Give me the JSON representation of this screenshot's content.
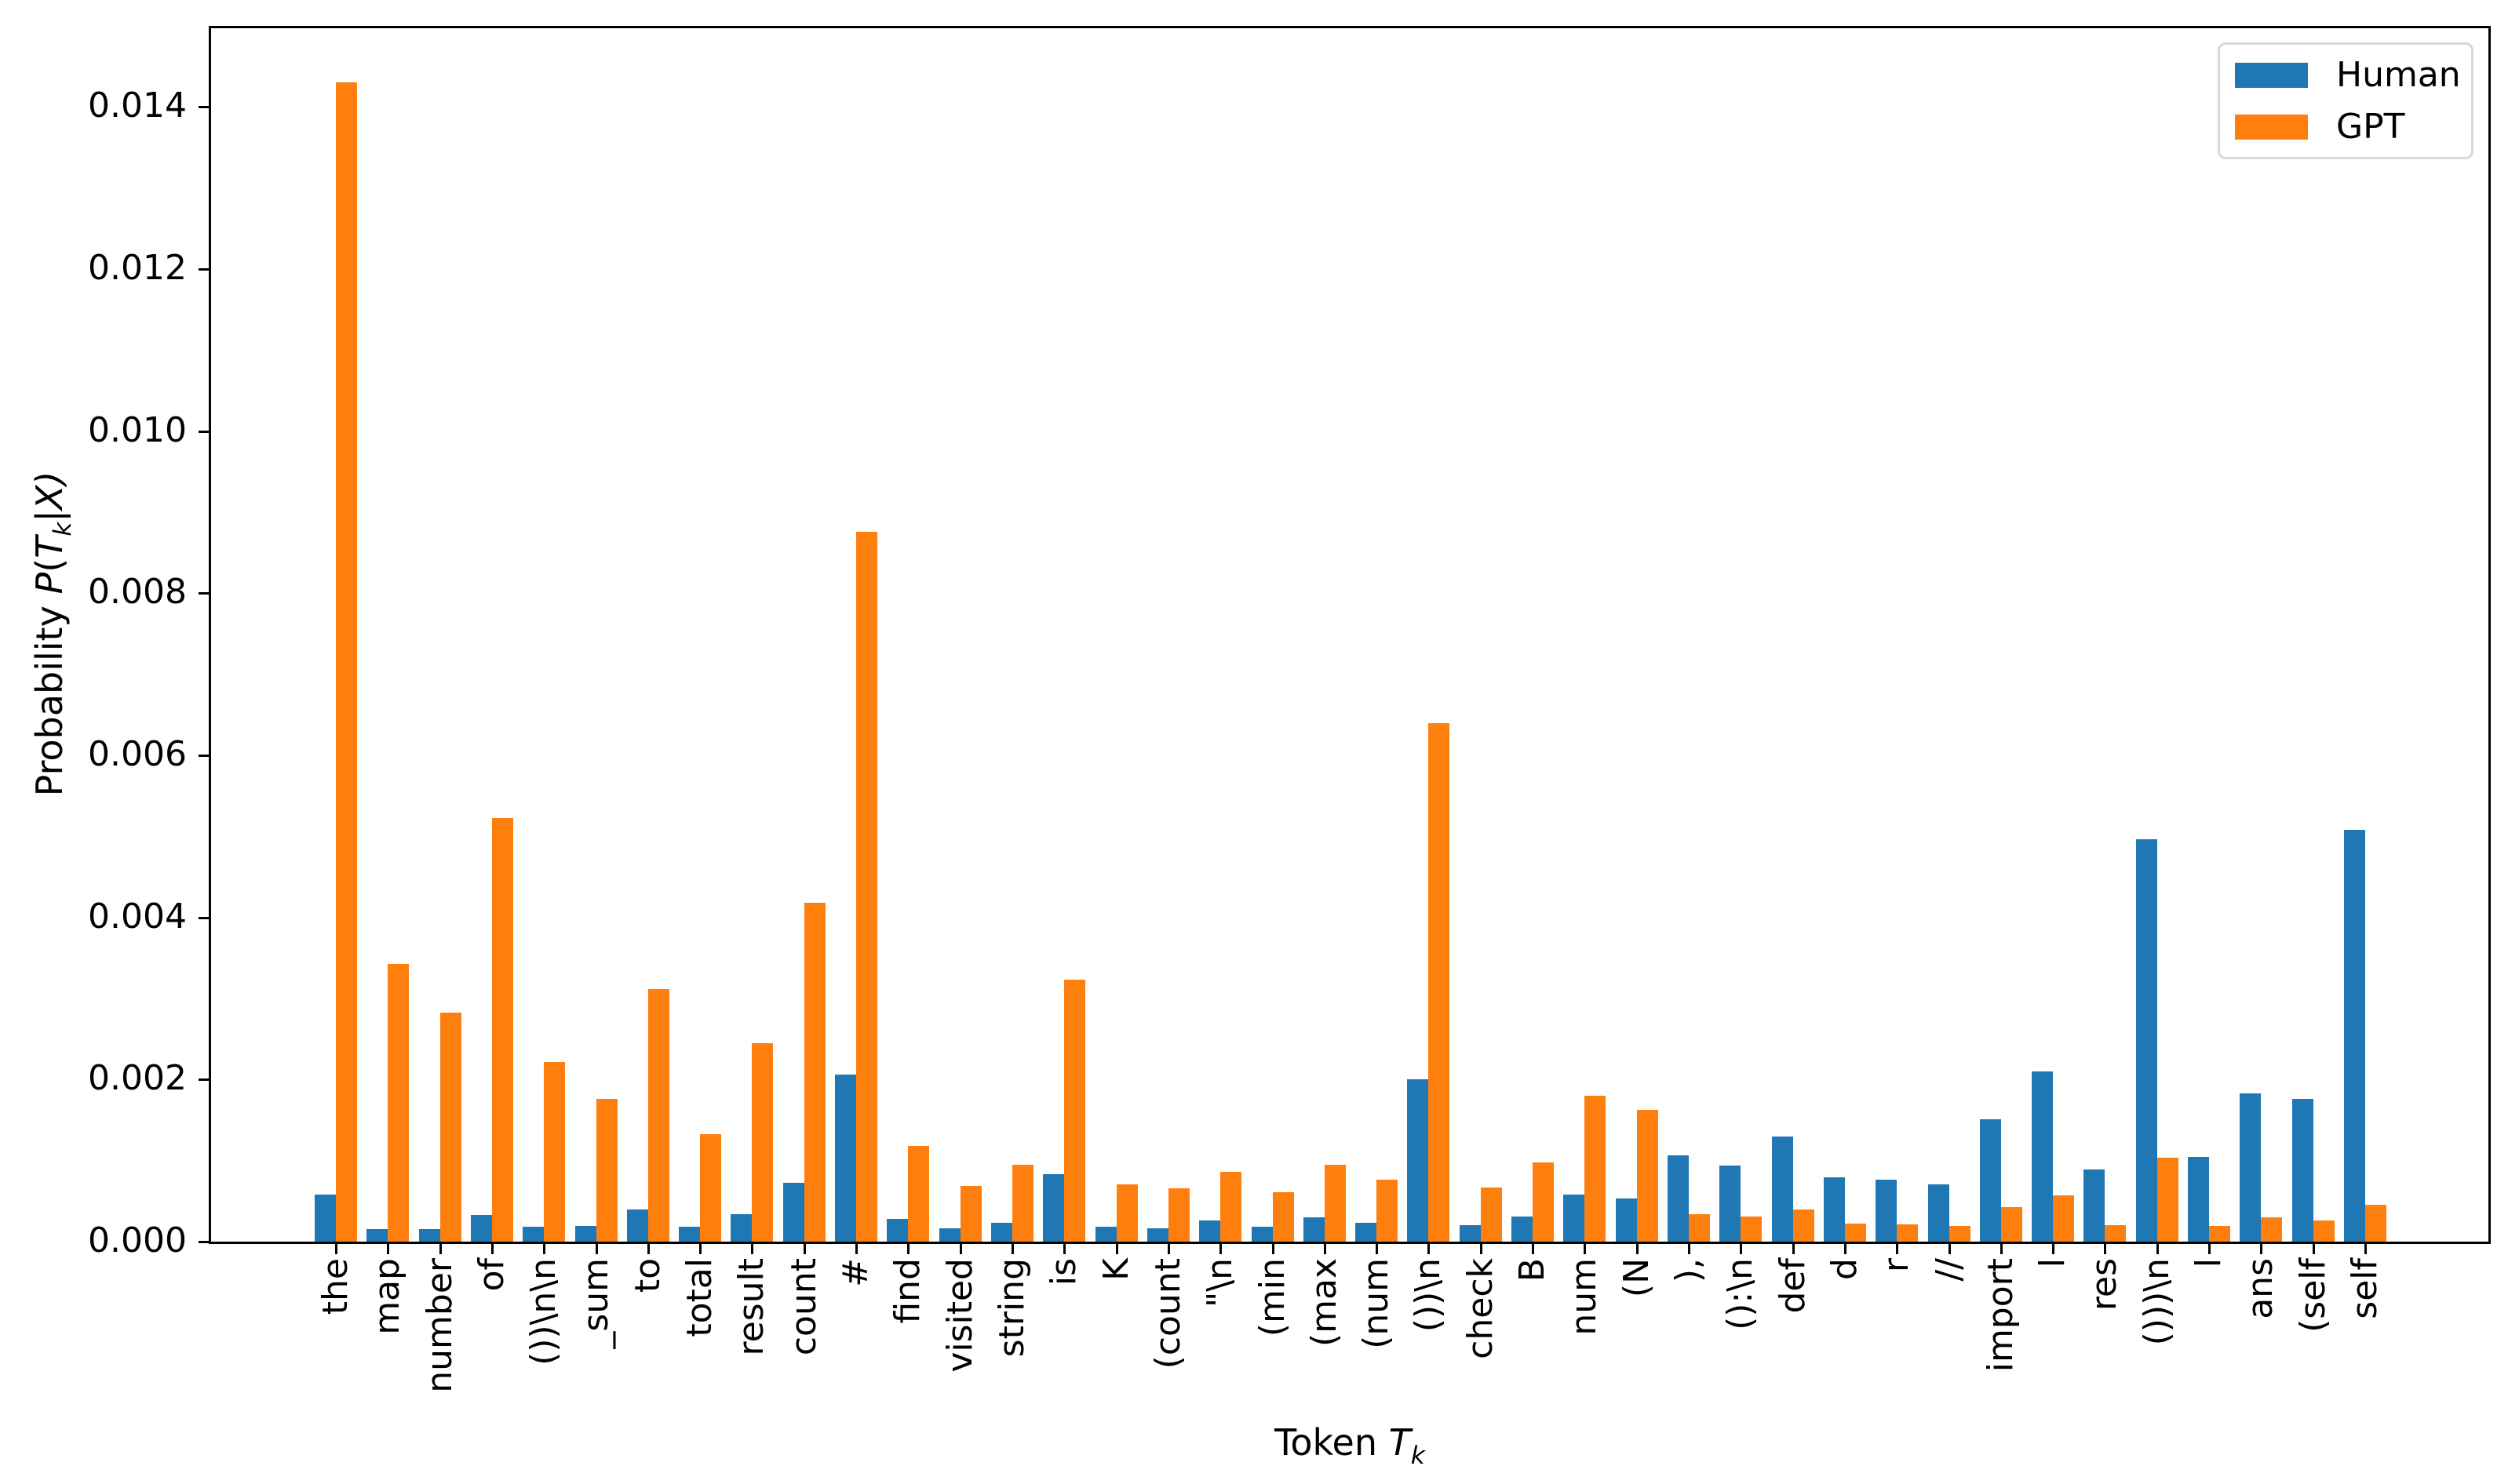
{
  "figure": {
    "xlabel": {
      "plain": "Token ",
      "math": "T",
      "sub": "k"
    },
    "ylabel": {
      "plain": "Probability ",
      "math_pre": "P",
      "paren": "(",
      "math_t": "T",
      "sub": "k",
      "rest": "|X)"
    },
    "legend": [
      {
        "label": "Human",
        "color": "#1f77b4"
      },
      {
        "label": "GPT",
        "color": "#ff7f0e"
      }
    ]
  },
  "chart_data": {
    "type": "bar",
    "title": "",
    "xlabel": "Token T_k",
    "ylabel": "Probability P(T_k|X)",
    "legend_position": "upper right",
    "grid": false,
    "ylim": [
      0,
      0.015
    ],
    "yticks": [
      0.0,
      0.002,
      0.004,
      0.006,
      0.008,
      0.01,
      0.012,
      0.014
    ],
    "ytick_labels": [
      "0.000",
      "0.002",
      "0.004",
      "0.006",
      "0.008",
      "0.010",
      "0.012",
      "0.014"
    ],
    "categories": [
      "the",
      "map",
      "number",
      "of",
      "())\\n\\n",
      "_sum",
      "to",
      "total",
      "result",
      "count",
      "#",
      "find",
      "visited",
      "string",
      "is",
      "K",
      "(count",
      "\"\\n",
      "(min",
      "(max",
      "(num",
      "())\\n",
      "check",
      "B",
      "num",
      "(N",
      "),",
      "():\\n",
      "def",
      "d",
      "r",
      "//",
      "import",
      "l",
      "res",
      "()))\\n",
      "l",
      "ans",
      "(self",
      "self"
    ],
    "series": [
      {
        "name": "Human",
        "color": "#1f77b4",
        "values": [
          0.00058,
          0.00015,
          0.00015,
          0.00033,
          0.00018,
          0.00019,
          0.0004,
          0.00018,
          0.00034,
          0.00073,
          0.00206,
          0.00028,
          0.00016,
          0.00023,
          0.00083,
          0.00018,
          0.00016,
          0.00026,
          0.00018,
          0.0003,
          0.00023,
          0.002,
          0.0002,
          0.00031,
          0.00058,
          0.00053,
          0.00106,
          0.00094,
          0.0013,
          0.00079,
          0.00076,
          0.00071,
          0.00151,
          0.0021,
          0.00089,
          0.00496,
          0.00105,
          0.00183,
          0.00176,
          0.00508
        ]
      },
      {
        "name": "GPT",
        "color": "#ff7f0e",
        "values": [
          0.0143,
          0.00343,
          0.00283,
          0.00523,
          0.00222,
          0.00176,
          0.00312,
          0.00133,
          0.00245,
          0.00418,
          0.00876,
          0.00118,
          0.00069,
          0.00095,
          0.00323,
          0.00071,
          0.00066,
          0.00086,
          0.00061,
          0.00095,
          0.00076,
          0.0064,
          0.00067,
          0.00098,
          0.0018,
          0.00163,
          0.00034,
          0.00031,
          0.0004,
          0.00022,
          0.00021,
          0.00019,
          0.00043,
          0.00057,
          0.0002,
          0.00104,
          0.00019,
          0.0003,
          0.00026,
          0.00045
        ]
      }
    ]
  }
}
